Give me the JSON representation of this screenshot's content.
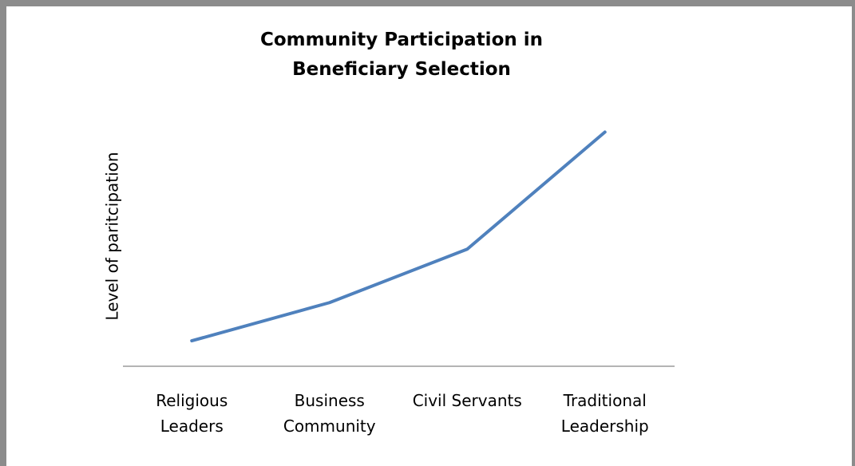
{
  "chart_data": {
    "type": "line",
    "title": "Community Participation in Beneficiary Selection",
    "ylabel": "Level of paritcipation",
    "categories": [
      "Religious Leaders",
      "Business Community",
      "Civil Servants",
      "Traditional Leadership"
    ],
    "series": [
      {
        "name": "Level of paritcipation",
        "color": "#4f81bd",
        "values": [
          1,
          2.5,
          4.6,
          9.2
        ]
      }
    ],
    "ylim": [
      0,
      10
    ]
  }
}
